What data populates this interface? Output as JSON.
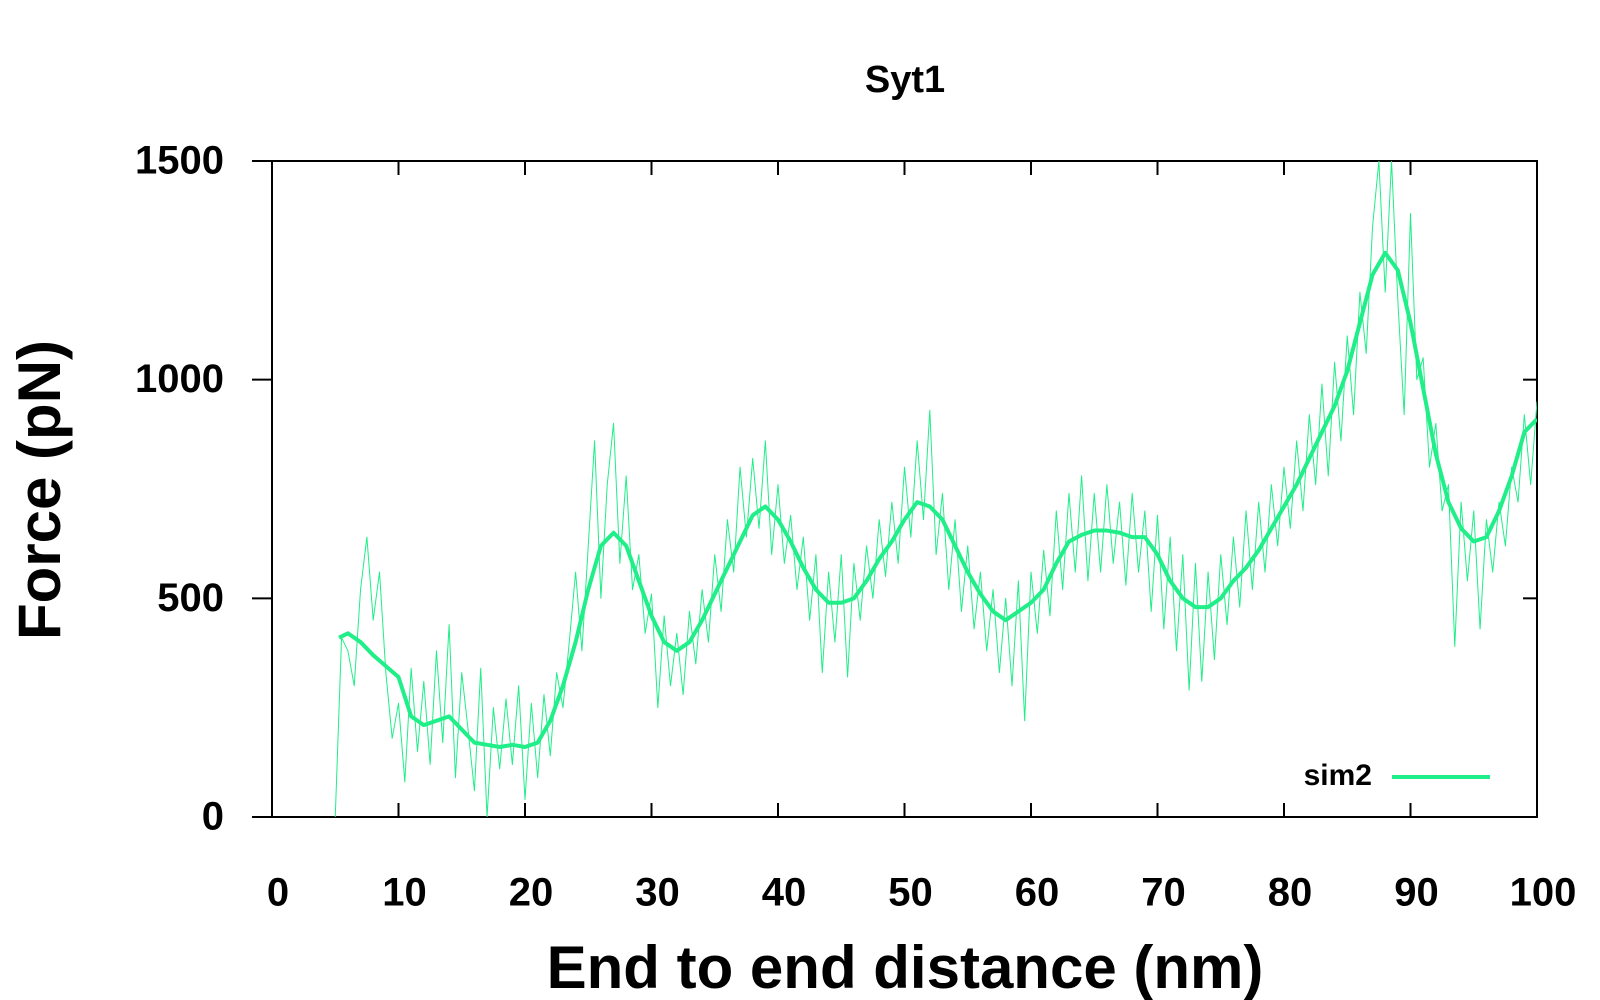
{
  "chart_data": {
    "type": "line",
    "title": "Syt1",
    "xlabel": "End to end distance (nm)",
    "ylabel": "Force (pN)",
    "xlim": [
      0,
      100
    ],
    "xticks": [
      0,
      10,
      20,
      30,
      40,
      50,
      60,
      70,
      80,
      90,
      100
    ],
    "ylim": [
      0,
      1500
    ],
    "yticks": [
      0,
      500,
      1000,
      1500
    ],
    "legend": "lower right",
    "series": [
      {
        "color": "#20ee88",
        "width": 1,
        "x": [
          5,
          5.5,
          6,
          6.5,
          7,
          7.5,
          8,
          8.5,
          9,
          9.5,
          10,
          10.5,
          11,
          11.5,
          12,
          12.5,
          13,
          13.5,
          14,
          14.5,
          15,
          15.5,
          16,
          16.5,
          17,
          17.5,
          18,
          18.5,
          19,
          19.5,
          20,
          20.5,
          21,
          21.5,
          22,
          22.5,
          23,
          23.5,
          24,
          24.5,
          25,
          25.5,
          26,
          26.5,
          27,
          27.5,
          28,
          28.5,
          29,
          29.5,
          30,
          30.5,
          31,
          31.5,
          32,
          32.5,
          33,
          33.5,
          34,
          34.5,
          35,
          35.5,
          36,
          36.5,
          37,
          37.5,
          38,
          38.5,
          39,
          39.5,
          40,
          40.5,
          41,
          41.5,
          42,
          42.5,
          43,
          43.5,
          44,
          44.5,
          45,
          45.5,
          46,
          46.5,
          47,
          47.5,
          48,
          48.5,
          49,
          49.5,
          50,
          50.5,
          51,
          51.5,
          52,
          52.5,
          53,
          53.5,
          54,
          54.5,
          55,
          55.5,
          56,
          56.5,
          57,
          57.5,
          58,
          58.5,
          59,
          59.5,
          60,
          60.5,
          61,
          61.5,
          62,
          62.5,
          63,
          63.5,
          64,
          64.5,
          65,
          65.5,
          66,
          66.5,
          67,
          67.5,
          68,
          68.5,
          69,
          69.5,
          70,
          70.5,
          71,
          71.5,
          72,
          72.5,
          73,
          73.5,
          74,
          74.5,
          75,
          75.5,
          76,
          76.5,
          77,
          77.5,
          78,
          78.5,
          79,
          79.5,
          80,
          80.5,
          81,
          81.5,
          82,
          82.5,
          83,
          83.5,
          84,
          84.5,
          85,
          85.5,
          86,
          86.5,
          87,
          87.5,
          88,
          88.5,
          89,
          89.5,
          90,
          90.5,
          91,
          91.5,
          92,
          92.5,
          93,
          93.5,
          94,
          94.5,
          95,
          95.5,
          96,
          96.5,
          97,
          97.5,
          98,
          98.5,
          99,
          99.5,
          100
        ],
        "values": [
          0,
          410,
          380,
          300,
          520,
          640,
          450,
          560,
          330,
          180,
          260,
          80,
          340,
          150,
          310,
          120,
          380,
          170,
          440,
          90,
          330,
          200,
          60,
          340,
          0,
          250,
          110,
          270,
          120,
          300,
          40,
          260,
          90,
          280,
          140,
          330,
          250,
          400,
          560,
          380,
          620,
          860,
          500,
          760,
          900,
          580,
          780,
          520,
          600,
          420,
          510,
          250,
          460,
          300,
          420,
          280,
          470,
          350,
          520,
          400,
          600,
          470,
          680,
          560,
          800,
          640,
          820,
          660,
          860,
          600,
          760,
          580,
          690,
          520,
          640,
          450,
          600,
          330,
          560,
          400,
          600,
          320,
          580,
          450,
          620,
          500,
          680,
          550,
          720,
          580,
          800,
          640,
          860,
          680,
          930,
          600,
          740,
          520,
          680,
          470,
          620,
          430,
          560,
          380,
          520,
          330,
          500,
          300,
          540,
          220,
          560,
          420,
          610,
          460,
          700,
          520,
          740,
          560,
          780,
          540,
          740,
          560,
          760,
          580,
          720,
          530,
          740,
          560,
          700,
          470,
          690,
          430,
          640,
          380,
          600,
          290,
          580,
          310,
          560,
          360,
          600,
          440,
          640,
          480,
          700,
          520,
          720,
          560,
          760,
          620,
          800,
          660,
          860,
          700,
          920,
          760,
          990,
          780,
          1040,
          860,
          1100,
          920,
          1200,
          1060,
          1350,
          1500,
          1200,
          1500,
          1180,
          920,
          1380,
          1000,
          1050,
          800,
          900,
          700,
          760,
          390,
          720,
          540,
          700,
          430,
          680,
          560,
          720,
          620,
          800,
          720,
          920,
          760,
          950
        ]
      },
      {
        "name": "sim2",
        "color": "#20ee88",
        "width": 4,
        "x": [
          5.3,
          6,
          7,
          8,
          9,
          10,
          11,
          12,
          13,
          14,
          15,
          16,
          17,
          18,
          19,
          20,
          21,
          22,
          23,
          24,
          25,
          26,
          27,
          28,
          29,
          30,
          31,
          32,
          33,
          34,
          35,
          36,
          37,
          38,
          39,
          40,
          41,
          42,
          43,
          44,
          45,
          46,
          47,
          48,
          49,
          50,
          51,
          52,
          53,
          54,
          55,
          56,
          57,
          58,
          59,
          60,
          61,
          62,
          63,
          64,
          65,
          66,
          67,
          68,
          69,
          70,
          71,
          72,
          73,
          74,
          75,
          76,
          77,
          78,
          79,
          80,
          81,
          82,
          83,
          84,
          85,
          86,
          87,
          88,
          89,
          90,
          91,
          92,
          93,
          94,
          95,
          96,
          97,
          98,
          99,
          100
        ],
        "values": [
          410,
          420,
          400,
          370,
          345,
          320,
          230,
          210,
          220,
          230,
          200,
          170,
          165,
          160,
          165,
          160,
          170,
          220,
          300,
          400,
          520,
          620,
          650,
          620,
          540,
          460,
          400,
          380,
          400,
          450,
          510,
          570,
          630,
          690,
          710,
          680,
          630,
          570,
          520,
          490,
          490,
          500,
          540,
          590,
          630,
          680,
          720,
          710,
          680,
          620,
          560,
          510,
          470,
          450,
          470,
          490,
          520,
          580,
          630,
          645,
          655,
          655,
          650,
          640,
          640,
          600,
          540,
          500,
          480,
          480,
          500,
          540,
          570,
          610,
          660,
          710,
          760,
          820,
          880,
          940,
          1020,
          1130,
          1240,
          1290,
          1250,
          1130,
          980,
          830,
          720,
          660,
          630,
          640,
          700,
          780,
          880,
          910
        ]
      }
    ]
  }
}
